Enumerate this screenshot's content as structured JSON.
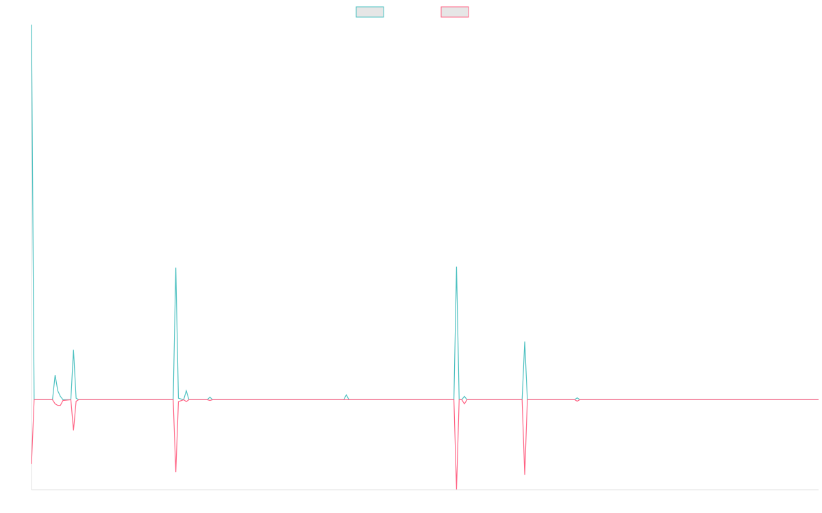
{
  "chart_data": {
    "type": "line",
    "x": [
      0,
      1,
      8,
      9,
      10,
      11,
      12,
      15,
      16,
      17,
      18,
      54,
      55,
      56,
      58,
      59,
      60,
      67,
      68,
      69,
      119,
      120,
      121,
      161,
      162,
      163,
      164,
      165,
      166,
      187,
      188,
      189,
      207,
      208,
      209,
      300
    ],
    "xlim": [
      0,
      300
    ],
    "ylim": [
      -24,
      100
    ],
    "series": [
      {
        "color": "#4bc0c0",
        "values": [
          100,
          0,
          0,
          6.6,
          2.4,
          0.9,
          0,
          0,
          13.3,
          0.4,
          0,
          0,
          35.2,
          0.4,
          0,
          2.4,
          0,
          0,
          0.7,
          0,
          0,
          1.3,
          0,
          0,
          35.5,
          0,
          0,
          0.9,
          0,
          0,
          15.5,
          0,
          0,
          0.5,
          0,
          0
        ]
      },
      {
        "color": "#ff6384",
        "values": [
          -17.1,
          0,
          0,
          -1.1,
          -1.5,
          -1.5,
          -0.2,
          0,
          -8.2,
          -0.4,
          0,
          0,
          -19.3,
          -0.5,
          0,
          -0.5,
          0,
          0,
          -0.2,
          0,
          0,
          0,
          0,
          0,
          -23.9,
          0,
          0,
          -1.1,
          0,
          0,
          -20,
          0,
          0,
          -0.4,
          0,
          0
        ]
      }
    ]
  }
}
